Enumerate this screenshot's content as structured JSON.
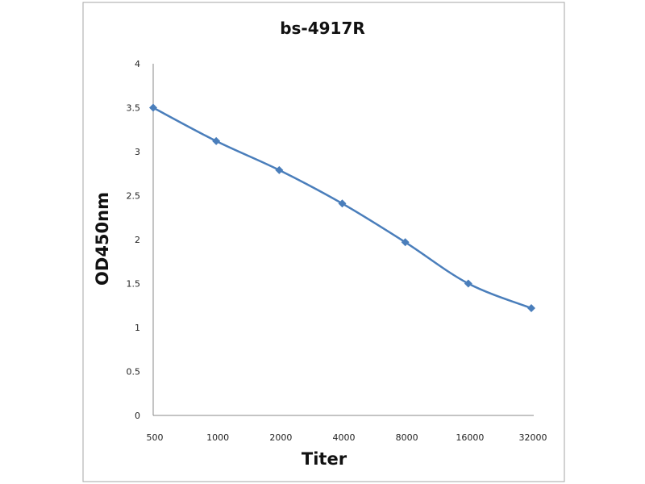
{
  "chart_data": {
    "type": "line",
    "title": "bs-4917R",
    "xlabel": "Titer",
    "ylabel": "OD450nm",
    "categories": [
      "500",
      "1000",
      "2000",
      "4000",
      "8000",
      "16000",
      "32000"
    ],
    "series": [
      {
        "name": "bs-4917R",
        "values": [
          3.5,
          3.12,
          2.79,
          2.41,
          1.97,
          1.5,
          1.22
        ],
        "color": "#4a7ebb"
      }
    ],
    "yticks": [
      "0",
      "0.5",
      "1",
      "1.5",
      "2",
      "2.5",
      "3",
      "3.5",
      "4"
    ],
    "ylim": [
      0,
      4
    ],
    "grid": false,
    "legend": "none"
  }
}
